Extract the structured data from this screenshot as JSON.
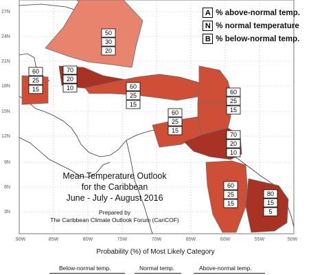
{
  "legend": [
    {
      "key": "A",
      "text": "% above-normal temp."
    },
    {
      "key": "N",
      "text": "% normal temperature"
    },
    {
      "key": "B",
      "text": "% below-normal temp."
    }
  ],
  "title_lines": [
    "Mean Temperature Outlook",
    "for the Caribbean",
    "June - July - August 2016"
  ],
  "credit_lines": [
    "Prepared by",
    "The Caribbean Climate Outlook Forum (CariCOF)"
  ],
  "latitude_labels": [
    "27N",
    "24N",
    "21N",
    "18N",
    "15N",
    "12N",
    "9N",
    "6N",
    "3N"
  ],
  "longitude_labels": [
    "90W",
    "85W",
    "80W",
    "75W",
    "70W",
    "65W",
    "60W",
    "55W",
    "50W"
  ],
  "bottom_title": "Probability (%) of Most Likely Category",
  "bottom_categories": [
    "Below-normal temp.",
    "Normal temp.",
    "Above-normal temp."
  ],
  "colors": {
    "light": "#e8836e",
    "medium": "#cf4f36",
    "dark": "#a83224",
    "land": "#ffffff",
    "grid": "#999999"
  },
  "forecast_regions": [
    {
      "name": "bahamas",
      "probabilities": [
        "50",
        "30",
        "20"
      ],
      "shade": "light"
    },
    {
      "name": "belize",
      "probabilities": [
        "60",
        "25",
        "15"
      ],
      "shade": "medium"
    },
    {
      "name": "cuba-jamaica",
      "probabilities": [
        "70",
        "20",
        "10"
      ],
      "shade": "dark"
    },
    {
      "name": "hispaniola",
      "probabilities": [
        "60",
        "25",
        "15"
      ],
      "shade": "medium"
    },
    {
      "name": "leeward-islands",
      "probabilities": [
        "60",
        "25",
        "15"
      ],
      "shade": "medium"
    },
    {
      "name": "abc-islands",
      "probabilities": [
        "60",
        "25",
        "15"
      ],
      "shade": "medium"
    },
    {
      "name": "windward-islands",
      "probabilities": [
        "70",
        "20",
        "10"
      ],
      "shade": "dark"
    },
    {
      "name": "guyana",
      "probabilities": [
        "60",
        "25",
        "15"
      ],
      "shade": "medium"
    },
    {
      "name": "suriname-guiana",
      "probabilities": [
        "80",
        "15",
        "5"
      ],
      "shade": "dark"
    }
  ]
}
